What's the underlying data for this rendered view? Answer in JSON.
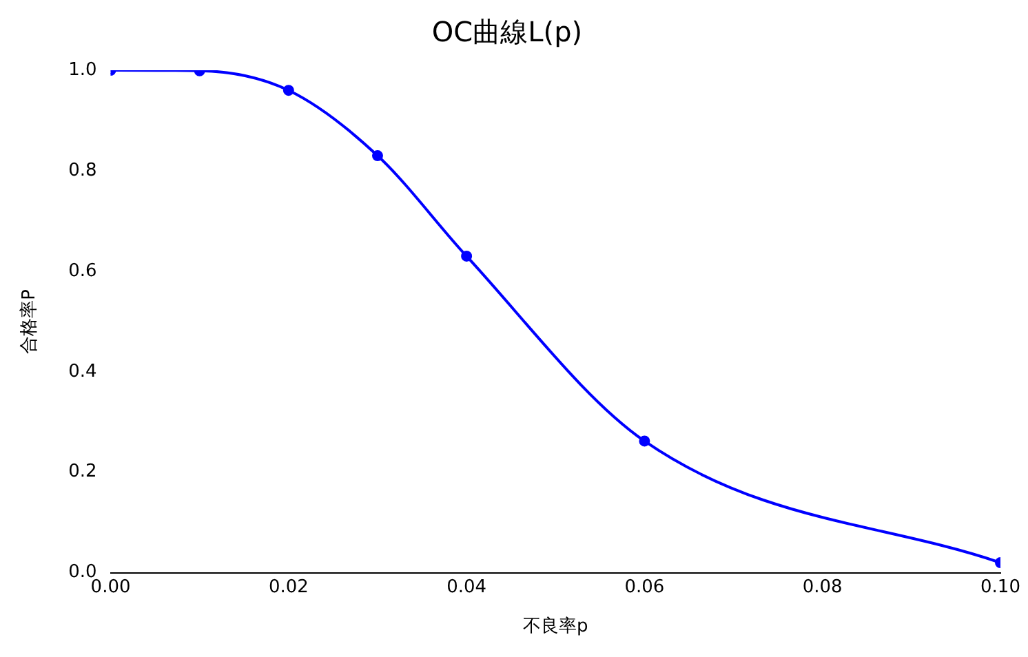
{
  "chart_data": {
    "type": "line",
    "title": "OC曲線L(p)",
    "xlabel": "不良率p",
    "ylabel": "合格率P",
    "x": [
      0,
      0.01,
      0.02,
      0.03,
      0.04,
      0.06,
      0.1
    ],
    "series": [
      {
        "color": "#0000ff",
        "values": [
          1.0,
          0.999,
          0.96,
          0.83,
          0.63,
          0.262,
          0.02
        ]
      }
    ],
    "xlim": [
      0,
      0.1
    ],
    "xticks": [
      {
        "value": 0,
        "label": "0.00"
      },
      {
        "value": 0.02,
        "label": "0.02"
      },
      {
        "value": 0.04,
        "label": "0.04"
      },
      {
        "value": 0.06,
        "label": "0.06"
      },
      {
        "value": 0.08,
        "label": "0.08"
      },
      {
        "value": 0.1,
        "label": "0.10"
      }
    ],
    "ylim": [
      0,
      1
    ],
    "yticks": [
      {
        "value": 0,
        "label": "0.0"
      },
      {
        "value": 0.2,
        "label": "0.2"
      },
      {
        "value": 0.4,
        "label": "0.4"
      },
      {
        "value": 0.6,
        "label": "0.6"
      },
      {
        "value": 0.8,
        "label": "0.8"
      },
      {
        "value": 1,
        "label": "1.0"
      }
    ],
    "grid": false,
    "legend": false,
    "marker": "circle",
    "line_style": "solid"
  }
}
